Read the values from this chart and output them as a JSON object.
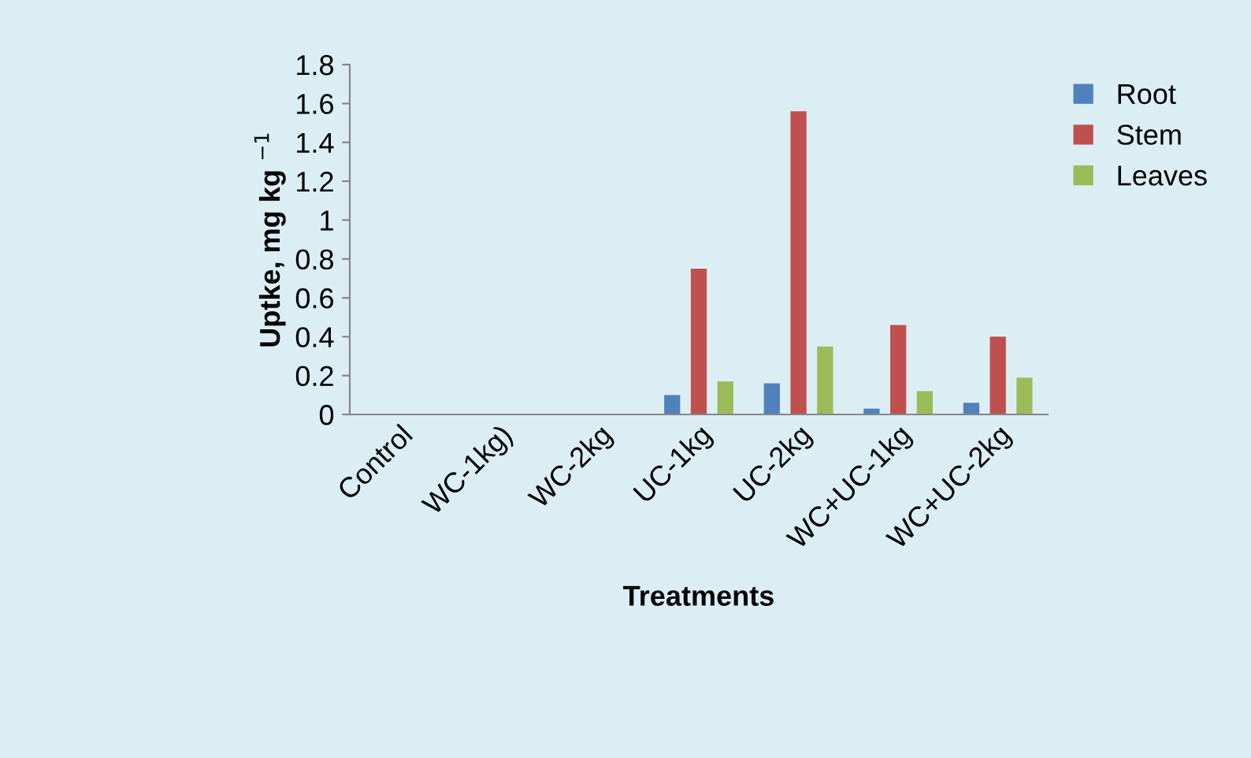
{
  "chart_data": {
    "type": "bar",
    "xlabel": "Treatments",
    "ylabel": "Uptke, mg kg $^{−1}$",
    "categories": [
      "Control",
      "WC-1kg)",
      "WC-2kg",
      "UC-1kg",
      "UC-2kg",
      "WC+UC-1kg",
      "WC+UC-2kg"
    ],
    "series": [
      {
        "name": "Root",
        "color": "#4f81bd",
        "values": [
          0,
          0,
          0,
          0.1,
          0.16,
          0.03,
          0.06
        ]
      },
      {
        "name": "Stem",
        "color": "#c0504d",
        "values": [
          0,
          0,
          0,
          0.75,
          1.56,
          0.46,
          0.4
        ]
      },
      {
        "name": "Leaves",
        "color": "#9bbb59",
        "values": [
          0,
          0,
          0,
          0.17,
          0.35,
          0.12,
          0.19
        ]
      }
    ],
    "ylim": [
      0,
      1.8
    ],
    "yticks": [
      0,
      0.2,
      0.4,
      0.6,
      0.8,
      1,
      1.2,
      1.4,
      1.6,
      1.8
    ],
    "grid": false,
    "legend": "top right"
  }
}
